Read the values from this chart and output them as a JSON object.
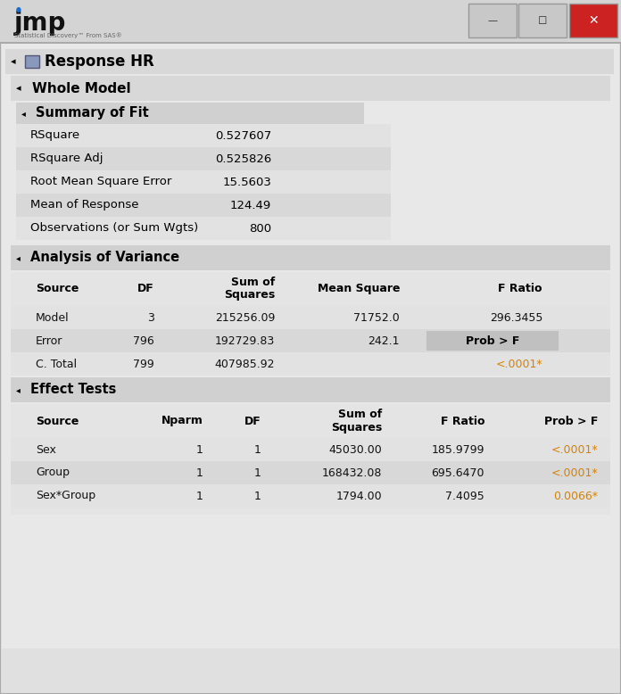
{
  "response_title": "Response HR",
  "whole_model_title": "Whole Model",
  "summary_fit_title": "Summary of Fit",
  "anova_title": "Analysis of Variance",
  "effect_title": "Effect Tests",
  "summary_labels": [
    "RSquare",
    "RSquare Adj",
    "Root Mean Square Error",
    "Mean of Response",
    "Observations (or Sum Wgts)"
  ],
  "summary_values": [
    "0.527607",
    "0.525826",
    "15.5603",
    "124.49",
    "800"
  ],
  "anova_headers": [
    "Source",
    "DF",
    "Sum of\nSquares",
    "Mean Square",
    "F Ratio"
  ],
  "anova_rows": [
    [
      "Model",
      "3",
      "215256.09",
      "71752.0",
      "296.3455"
    ],
    [
      "Error",
      "796",
      "192729.83",
      "242.1",
      "Prob > F"
    ],
    [
      "C. Total",
      "799",
      "407985.92",
      "",
      "<.0001*"
    ]
  ],
  "effect_headers": [
    "Source",
    "Nparm",
    "DF",
    "Sum of\nSquares",
    "F Ratio",
    "Prob > F"
  ],
  "effect_rows": [
    [
      "Sex",
      "1",
      "1",
      "45030.00",
      "185.9799",
      "<.0001*"
    ],
    [
      "Group",
      "1",
      "1",
      "168432.08",
      "695.6470",
      "<.0001*"
    ],
    [
      "Sex*Group",
      "1",
      "1",
      "1794.00",
      "7.4095",
      "0.0066*"
    ]
  ],
  "bg_outer": "#c0c0c0",
  "bg_window": "#e0e0e0",
  "bg_titlebar": "#d4d4d4",
  "bg_section_header": "#d0d0d0",
  "bg_row_even": "#e4e4e4",
  "bg_row_odd": "#d8d8d8",
  "bg_table": "#e4e4e4",
  "bg_prob_box": "#c8c8c8",
  "color_orange": "#d4820a",
  "color_black": "#111111",
  "color_red_btn": "#cc2222",
  "border_color": "#aaaaaa"
}
